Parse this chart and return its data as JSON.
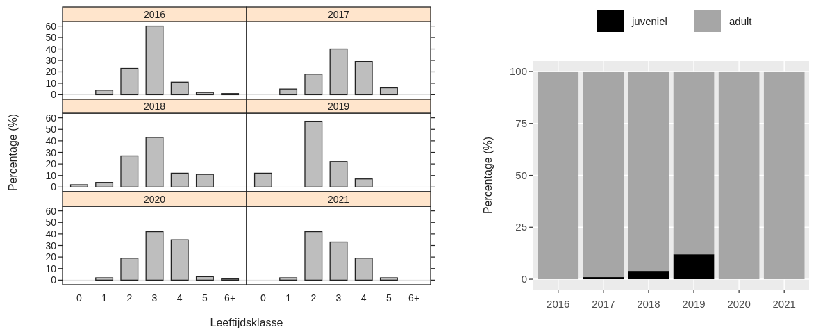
{
  "chart_data": [
    {
      "type": "bar",
      "title": "2016",
      "categories": [
        "0",
        "1",
        "2",
        "3",
        "4",
        "5",
        "6+"
      ],
      "values": [
        null,
        4,
        23,
        60,
        11,
        2,
        1
      ],
      "color": "#bebebe",
      "ylim": [
        -4,
        64
      ],
      "yticks": [
        0,
        10,
        20,
        30,
        40,
        50,
        60
      ],
      "tick_labels": "y",
      "ref_lines": [
        {
          "axis": "y",
          "value": 0,
          "color": "#dcdcdc"
        }
      ]
    },
    {
      "type": "bar",
      "title": "2017",
      "categories": [
        "0",
        "1",
        "2",
        "3",
        "4",
        "5",
        "6+"
      ],
      "values": [
        0,
        5,
        18,
        40,
        29,
        6,
        0
      ],
      "color": "#bebebe",
      "ylim": [
        -4,
        64
      ],
      "yticks": [
        0,
        10,
        20,
        30,
        40,
        50,
        60
      ],
      "tick_labels": false,
      "ref_lines": [
        {
          "axis": "y",
          "value": 0,
          "color": "#dcdcdc"
        }
      ]
    },
    {
      "type": "bar",
      "title": "2018",
      "ylabel": "Percentage (%)",
      "categories": [
        "0",
        "1",
        "2",
        "3",
        "4",
        "5",
        "6+"
      ],
      "values": [
        2,
        4,
        27,
        43,
        12,
        11,
        0
      ],
      "color": "#bebebe",
      "ylim": [
        -4,
        64
      ],
      "yticks": [
        0,
        10,
        20,
        30,
        40,
        50,
        60
      ],
      "tick_labels": "y",
      "ref_lines": [
        {
          "axis": "y",
          "value": 0,
          "color": "#dcdcdc"
        }
      ]
    },
    {
      "type": "bar",
      "title": "2019",
      "categories": [
        "0",
        "1",
        "2",
        "3",
        "4",
        "5",
        "6+"
      ],
      "values": [
        12,
        0,
        57,
        22,
        7,
        null,
        0
      ],
      "color": "#bebebe",
      "ylim": [
        -4,
        64
      ],
      "yticks": [
        0,
        10,
        20,
        30,
        40,
        50,
        60
      ],
      "tick_labels": false,
      "ref_lines": [
        {
          "axis": "y",
          "value": 0,
          "color": "#dcdcdc"
        }
      ]
    },
    {
      "type": "bar",
      "title": "2020",
      "xlabel": "Leeftijdsklasse",
      "categories": [
        "0",
        "1",
        "2",
        "3",
        "4",
        "5",
        "6+"
      ],
      "values": [
        null,
        2,
        19,
        42,
        35,
        3,
        1
      ],
      "color": "#bebebe",
      "ylim": [
        -4,
        64
      ],
      "yticks": [
        0,
        10,
        20,
        30,
        40,
        50,
        60
      ],
      "ref_lines": [
        {
          "axis": "y",
          "value": 0,
          "color": "#dcdcdc"
        }
      ]
    },
    {
      "type": "bar",
      "title": "2021",
      "categories": [
        "0",
        "1",
        "2",
        "3",
        "4",
        "5",
        "6+"
      ],
      "values": [
        0,
        2,
        42,
        33,
        19,
        2,
        0
      ],
      "color": "#bebebe",
      "ylim": [
        -4,
        64
      ],
      "yticks": [
        0,
        10,
        20,
        30,
        40,
        50,
        60
      ],
      "tick_labels": "x",
      "ref_lines": [
        {
          "axis": "y",
          "value": 0,
          "color": "#dcdcdc"
        }
      ]
    },
    {
      "type": "bar",
      "ylabel": "Percentage (%)",
      "categories": [
        "2016",
        "2017",
        "2018",
        "2019",
        "2020",
        "2021"
      ],
      "stacked": true,
      "legend": "top",
      "grid": true,
      "ylim": [
        -5,
        105
      ],
      "yticks": [
        0,
        25,
        50,
        75,
        100
      ],
      "series": [
        {
          "name": "juveniel",
          "color": "#000000",
          "values": [
            0,
            1,
            4,
            12,
            0,
            0
          ]
        },
        {
          "name": "adult",
          "color": "#a6a6a6",
          "values": [
            100,
            99,
            96,
            88,
            100,
            100
          ]
        }
      ]
    }
  ]
}
